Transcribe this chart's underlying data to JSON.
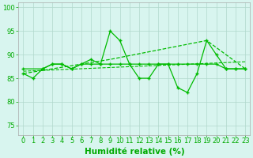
{
  "xlabel": "Humidité relative (%)",
  "xlim": [
    -0.5,
    23.5
  ],
  "ylim": [
    73,
    101
  ],
  "yticks": [
    75,
    80,
    85,
    90,
    95,
    100
  ],
  "xticks": [
    0,
    1,
    2,
    3,
    4,
    5,
    6,
    7,
    8,
    9,
    10,
    11,
    12,
    13,
    14,
    15,
    16,
    17,
    18,
    19,
    20,
    21,
    22,
    23
  ],
  "bg_color": "#d8f5ef",
  "grid_color": "#b0d8cc",
  "line_color": "#00bb00",
  "font_color": "#00aa00",
  "xlabel_fontsize": 7.5,
  "tick_fontsize": 6.0,
  "line1_x": [
    0,
    1,
    2,
    3,
    4,
    5,
    6,
    7,
    8,
    9,
    10,
    11,
    12,
    13,
    14,
    15,
    16,
    17,
    18,
    19,
    20,
    21,
    22,
    23
  ],
  "line1_y": [
    86,
    85,
    87,
    88,
    88,
    87,
    88,
    89,
    88,
    95,
    93,
    88,
    85,
    85,
    88,
    88,
    83,
    82,
    86,
    93,
    90,
    87,
    87,
    87
  ],
  "line2_x": [
    0,
    2,
    3,
    4,
    5,
    6,
    7,
    8,
    9,
    10,
    11,
    12,
    13,
    14,
    15,
    16,
    17,
    18,
    19,
    20,
    21,
    22,
    23
  ],
  "line2_y": [
    87,
    87,
    88,
    88,
    87,
    88,
    88,
    88,
    88,
    88,
    88,
    88,
    88,
    88,
    88,
    88,
    88,
    88,
    88,
    88,
    87,
    87,
    87
  ],
  "line3_x": [
    0,
    23
  ],
  "line3_y": [
    86.5,
    88.5
  ],
  "line4_x": [
    0,
    9,
    19,
    23
  ],
  "line4_y": [
    86,
    89,
    93,
    87
  ]
}
